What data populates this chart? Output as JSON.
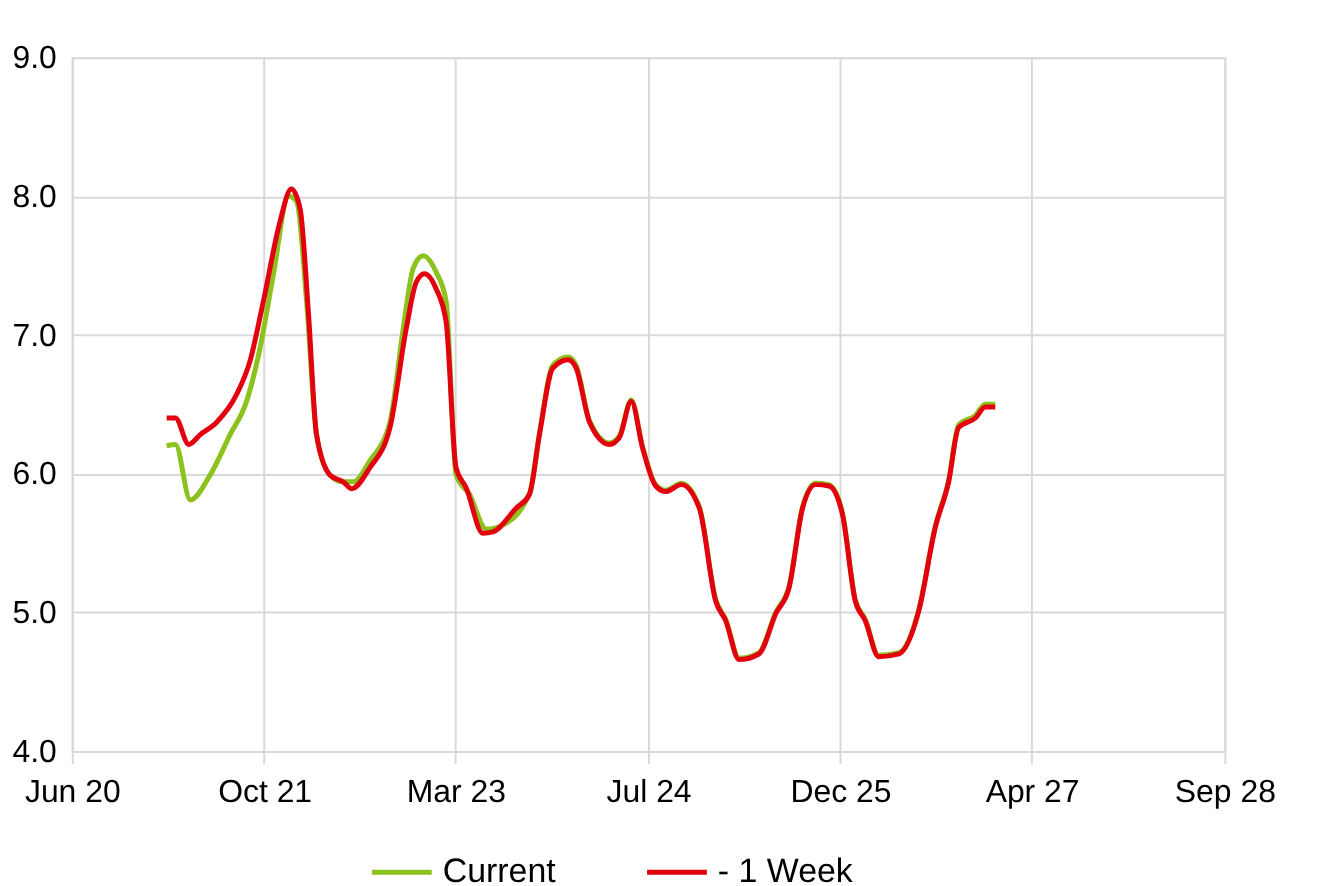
{
  "chart_data": {
    "type": "line",
    "xlim": [
      "2020-06-15",
      "2028-09-15"
    ],
    "ylim": [
      4,
      9
    ],
    "xticks": [
      {
        "value": "2020-06-15",
        "label": "Jun 20"
      },
      {
        "value": "2021-10-31",
        "label": "Oct 21"
      },
      {
        "value": "2023-03-15",
        "label": "Mar 23"
      },
      {
        "value": "2024-07-31",
        "label": "Jul 24"
      },
      {
        "value": "2025-12-15",
        "label": "Dec 25"
      },
      {
        "value": "2027-04-30",
        "label": "Apr 27"
      },
      {
        "value": "2028-09-15",
        "label": "Sep 28"
      }
    ],
    "yticks": [
      {
        "value": 4,
        "label": "4.0"
      },
      {
        "value": 5,
        "label": "5.0"
      },
      {
        "value": 6,
        "label": "6.0"
      },
      {
        "value": 7,
        "label": "7.0"
      },
      {
        "value": 8,
        "label": "8.0"
      },
      {
        "value": 9,
        "label": "9.0"
      }
    ],
    "grid": true,
    "legend": "bottom",
    "marker": "none",
    "line_style": "solid",
    "series": [
      {
        "name": "Current",
        "color": "#8cc21e",
        "x": [
          "2021-02-18",
          "2021-03-13",
          "2021-04-21",
          "2021-06-12",
          "2021-08-03",
          "2021-09-15",
          "2021-10-20",
          "2021-11-24",
          "2022-01-03",
          "2022-01-24",
          "2022-02-19",
          "2022-03-17",
          "2022-04-21",
          "2022-05-26",
          "2022-06-21",
          "2022-08-03",
          "2022-09-25",
          "2022-10-30",
          "2022-11-25",
          "2022-12-21",
          "2023-01-24",
          "2023-02-19",
          "2023-03-17",
          "2023-04-21",
          "2023-06-04",
          "2023-07-18",
          "2023-09-25",
          "2023-10-21",
          "2023-11-25",
          "2024-01-04",
          "2024-01-25",
          "2024-02-29",
          "2024-04-21",
          "2024-05-17",
          "2024-06-17",
          "2024-07-17",
          "2024-08-20",
          "2024-09-15",
          "2024-10-26",
          "2024-12-12",
          "2025-01-24",
          "2025-02-19",
          "2025-03-26",
          "2025-05-17",
          "2025-06-30",
          "2025-08-04",
          "2025-09-08",
          "2025-10-12",
          "2025-11-16",
          "2025-12-21",
          "2026-01-24",
          "2026-02-19",
          "2026-03-26",
          "2026-05-18",
          "2026-07-09",
          "2026-08-21",
          "2026-09-25",
          "2026-10-21",
          "2026-12-04",
          "2026-12-30",
          "2027-01-25"
        ],
        "values": [
          6.2,
          6.21,
          5.81,
          5.99,
          6.28,
          6.52,
          6.9,
          7.43,
          8.0,
          7.96,
          7.24,
          6.28,
          5.99,
          5.94,
          5.94,
          6.09,
          6.37,
          7.05,
          7.48,
          7.57,
          7.45,
          7.24,
          5.99,
          5.85,
          5.6,
          5.63,
          5.86,
          6.29,
          6.78,
          6.84,
          6.78,
          6.38,
          6.22,
          6.27,
          6.53,
          6.19,
          5.92,
          5.88,
          5.93,
          5.76,
          5.09,
          4.95,
          4.67,
          4.71,
          5.0,
          5.19,
          5.76,
          5.93,
          5.92,
          5.72,
          5.09,
          4.95,
          4.69,
          4.71,
          5.02,
          5.62,
          5.95,
          6.35,
          6.42,
          6.5,
          6.5
        ]
      },
      {
        "name": "- 1 Week",
        "color": "#e3000f",
        "x": [
          "2021-02-18",
          "2021-03-13",
          "2021-04-17",
          "2021-05-17",
          "2021-06-29",
          "2021-08-20",
          "2021-09-24",
          "2021-10-29",
          "2021-12-11",
          "2022-01-10",
          "2022-02-02",
          "2022-02-24",
          "2022-03-17",
          "2022-04-21",
          "2022-05-26",
          "2022-06-17",
          "2022-08-03",
          "2022-09-25",
          "2022-11-07",
          "2022-12-03",
          "2022-12-24",
          "2023-01-24",
          "2023-02-19",
          "2023-03-17",
          "2023-04-12",
          "2023-05-26",
          "2023-06-21",
          "2023-08-21",
          "2023-09-25",
          "2023-10-21",
          "2023-11-25",
          "2024-01-04",
          "2024-01-25",
          "2024-02-29",
          "2024-04-21",
          "2024-05-17",
          "2024-06-17",
          "2024-07-17",
          "2024-08-20",
          "2024-09-15",
          "2024-10-26",
          "2024-12-12",
          "2025-01-24",
          "2025-02-19",
          "2025-03-26",
          "2025-05-17",
          "2025-06-30",
          "2025-08-04",
          "2025-09-08",
          "2025-10-12",
          "2025-11-16",
          "2025-12-21",
          "2026-01-24",
          "2026-02-19",
          "2026-03-26",
          "2026-05-18",
          "2026-07-09",
          "2026-08-21",
          "2026-09-25",
          "2026-10-21",
          "2026-12-04",
          "2026-12-30",
          "2027-01-25"
        ],
        "values": [
          6.4,
          6.4,
          6.21,
          6.28,
          6.37,
          6.57,
          6.81,
          7.24,
          7.81,
          8.05,
          7.91,
          7.15,
          6.28,
          5.99,
          5.94,
          5.89,
          6.04,
          6.33,
          7.05,
          7.38,
          7.44,
          7.33,
          7.09,
          6.04,
          5.9,
          5.57,
          5.58,
          5.75,
          5.85,
          6.28,
          6.76,
          6.82,
          6.76,
          6.37,
          6.21,
          6.26,
          6.52,
          6.18,
          5.91,
          5.87,
          5.92,
          5.75,
          5.08,
          4.94,
          4.66,
          4.7,
          4.99,
          5.18,
          5.75,
          5.92,
          5.91,
          5.71,
          5.08,
          4.94,
          4.68,
          4.7,
          5.01,
          5.61,
          5.94,
          6.33,
          6.4,
          6.48,
          6.48
        ]
      }
    ]
  }
}
